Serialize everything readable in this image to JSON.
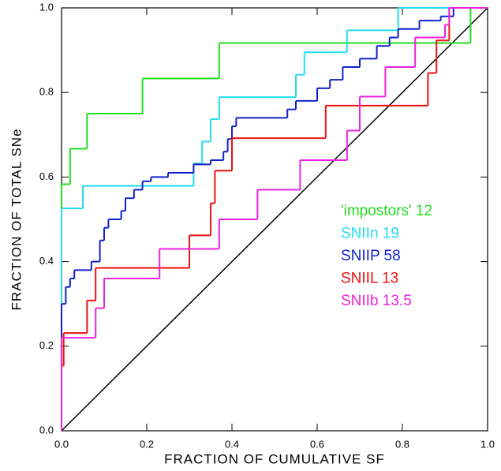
{
  "chart_data": {
    "type": "step",
    "xlabel": "FRACTION OF CUMULATIVE SF",
    "ylabel": "FRACTION OF TOTAL SNe",
    "xlim": [
      0,
      1
    ],
    "ylim": [
      0,
      1
    ],
    "xticks": [
      {
        "value": 0,
        "label": "0.0"
      },
      {
        "value": 0.2,
        "label": "0.2"
      },
      {
        "value": 0.4,
        "label": "0.4"
      },
      {
        "value": 0.6,
        "label": "0.6"
      },
      {
        "value": 0.8,
        "label": "0.8"
      },
      {
        "value": 1,
        "label": "1.0"
      }
    ],
    "yticks": [
      {
        "value": 0,
        "label": "0.0"
      },
      {
        "value": 0.2,
        "label": "0.2"
      },
      {
        "value": 0.4,
        "label": "0.4"
      },
      {
        "value": 0.6,
        "label": "0.6"
      },
      {
        "value": 0.8,
        "label": "0.8"
      },
      {
        "value": 1,
        "label": "1.0"
      }
    ],
    "series": [
      {
        "name": "'impostors' 12",
        "color": "#22dd22",
        "x": [
          0,
          0,
          0.02,
          0.06,
          0.19,
          0.37,
          0.96,
          1.0
        ],
        "values": [
          0,
          0.583,
          0.667,
          0.75,
          0.833,
          0.917,
          1.0,
          1.0
        ]
      },
      {
        "name": "SNIIn 19",
        "color": "#22ddee",
        "x": [
          0,
          0,
          0.05,
          0.31,
          0.33,
          0.35,
          0.37,
          0.55,
          0.57,
          0.67,
          0.79,
          1.0
        ],
        "values": [
          0,
          0.526,
          0.579,
          0.632,
          0.684,
          0.737,
          0.789,
          0.842,
          0.895,
          0.947,
          1.0,
          1.0
        ]
      },
      {
        "name": "SNIIP 58",
        "color": "#1122cc",
        "x": [
          0,
          0,
          0.01,
          0.02,
          0.03,
          0.07,
          0.09,
          0.1,
          0.11,
          0.14,
          0.15,
          0.17,
          0.19,
          0.21,
          0.25,
          0.31,
          0.35,
          0.38,
          0.39,
          0.4,
          0.41,
          0.53,
          0.55,
          0.6,
          0.63,
          0.66,
          0.7,
          0.74,
          0.77,
          0.79,
          0.84,
          0.89,
          0.92,
          1.0
        ],
        "values": [
          0,
          0.3,
          0.34,
          0.36,
          0.38,
          0.4,
          0.45,
          0.48,
          0.5,
          0.52,
          0.55,
          0.57,
          0.59,
          0.6,
          0.61,
          0.63,
          0.64,
          0.66,
          0.69,
          0.72,
          0.74,
          0.76,
          0.78,
          0.81,
          0.83,
          0.86,
          0.88,
          0.91,
          0.93,
          0.95,
          0.97,
          0.98,
          1.0,
          1.0
        ]
      },
      {
        "name": "SNIIL 13",
        "color": "#ee1111",
        "x": [
          0,
          0,
          0.005,
          0.06,
          0.08,
          0.3,
          0.35,
          0.36,
          0.4,
          0.62,
          0.86,
          0.88,
          0.91,
          1.0
        ],
        "values": [
          0,
          0.154,
          0.231,
          0.308,
          0.385,
          0.462,
          0.538,
          0.615,
          0.692,
          0.769,
          0.846,
          0.923,
          1.0,
          1.0
        ]
      },
      {
        "name": "SNIIb 13.5",
        "color": "#ee22dd",
        "x": [
          0,
          0,
          0.08,
          0.1,
          0.23,
          0.37,
          0.46,
          0.56,
          0.67,
          0.7,
          0.76,
          0.83,
          0.9,
          0.91,
          1.0
        ],
        "values": [
          0,
          0.22,
          0.29,
          0.36,
          0.43,
          0.5,
          0.57,
          0.64,
          0.71,
          0.79,
          0.86,
          0.93,
          0.96,
          1.0,
          1.0
        ]
      }
    ]
  }
}
